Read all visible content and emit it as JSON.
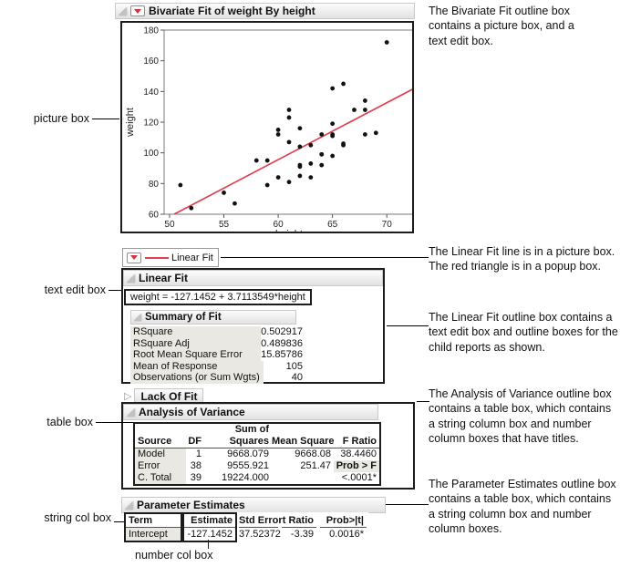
{
  "window": {
    "title_bar": "Bivariate Fit of weight By height"
  },
  "legend": {
    "label": "Linear Fit"
  },
  "linear_fit": {
    "title": "Linear Fit",
    "equation": "weight = -127.1452 + 3.7113549*height",
    "summary_of_fit": {
      "title": "Summary of Fit",
      "rows": [
        {
          "label": "RSquare",
          "value": "0.502917"
        },
        {
          "label": "RSquare Adj",
          "value": "0.489836"
        },
        {
          "label": "Root Mean Square Error",
          "value": "15.85786"
        },
        {
          "label": "Mean of Response",
          "value": "105"
        },
        {
          "label": "Observations (or Sum Wgts)",
          "value": "40"
        }
      ]
    },
    "lack_of_fit": {
      "title": "Lack Of Fit"
    },
    "analysis_of_variance": {
      "title": "Analysis of Variance",
      "columns": [
        {
          "name": "Source",
          "type": "string",
          "header": [
            "",
            "Source"
          ],
          "cells": [
            "Model",
            "Error",
            "C. Total"
          ]
        },
        {
          "name": "DF",
          "type": "number",
          "header": [
            "",
            "DF"
          ],
          "cells": [
            "1",
            "38",
            "39"
          ]
        },
        {
          "name": "Sum of Squares",
          "type": "number",
          "header": [
            "Sum of",
            "Squares"
          ],
          "cells": [
            "9668.079",
            "9555.921",
            "19224.000"
          ]
        },
        {
          "name": "Mean Square",
          "type": "number",
          "header": [
            "",
            "Mean Square"
          ],
          "cells": [
            "9668.08",
            "251.47",
            ""
          ]
        },
        {
          "name": "F Ratio",
          "type": "number",
          "header": [
            "",
            "F Ratio"
          ],
          "cells": [
            "38.4460",
            "Prob > F",
            "<.0001*"
          ],
          "label_cell_index": 1
        }
      ]
    },
    "parameter_estimates": {
      "title": "Parameter Estimates",
      "columns": [
        {
          "name": "Term",
          "type": "string",
          "header": "Term",
          "cells": [
            "Intercept"
          ],
          "boxed": true
        },
        {
          "name": "Estimate",
          "type": "number",
          "header": "Estimate",
          "cells": [
            "-127.1452"
          ],
          "boxed": true
        },
        {
          "name": "Std Error",
          "type": "number",
          "header": "Std Error",
          "cells": [
            "37.52372"
          ]
        },
        {
          "name": "t Ratio",
          "type": "number",
          "header": "t Ratio",
          "cells": [
            "-3.39"
          ]
        },
        {
          "name": "Prob>|t|",
          "type": "number",
          "header": "Prob>|t|",
          "cells": [
            "0.0016*"
          ]
        }
      ]
    }
  },
  "callout_labels": {
    "picture_box": "picture box",
    "text_edit_box": "text edit box",
    "table_box": "table box",
    "string_col_box": "string col box",
    "number_col_box": "number col box"
  },
  "annotations": [
    "The Bivariate Fit outline box\ncontains a picture box, and a\ntext edit box.",
    "The Linear Fit line is in a picture box.\nThe red triangle is in a popup box.",
    "The Linear Fit outline box contains a\ntext edit box and outline boxes for the\nchild reports as shown.",
    "The Analysis of Variance outline box\ncontains a table box, which contains\na string column box and number\ncolumn boxes that have titles.",
    "The Parameter Estimates outline box\ncontains a table box, which contains\na string column box and number\ncolumn boxes."
  ],
  "colors": {
    "red_triangle": "#d2323e",
    "fit_line": "#de4150",
    "column_shade": "#e9e8e2"
  },
  "chart_data": {
    "type": "scatter",
    "title": "",
    "xlabel": "height",
    "ylabel": "weight",
    "xlim": [
      49.5,
      72.5
    ],
    "ylim": [
      60,
      180
    ],
    "x_ticks": [
      50,
      55,
      60,
      65,
      70
    ],
    "y_ticks": [
      60,
      80,
      100,
      120,
      140,
      160,
      180
    ],
    "grid": false,
    "points": [
      [
        59,
        95
      ],
      [
        61,
        123
      ],
      [
        55,
        74
      ],
      [
        66,
        145
      ],
      [
        52,
        64
      ],
      [
        60,
        84
      ],
      [
        61,
        128
      ],
      [
        51,
        79
      ],
      [
        60,
        112
      ],
      [
        61,
        107
      ],
      [
        56,
        67
      ],
      [
        65,
        98
      ],
      [
        63,
        105
      ],
      [
        58,
        95
      ],
      [
        59,
        79
      ],
      [
        61,
        81
      ],
      [
        62,
        91
      ],
      [
        65,
        142
      ],
      [
        63,
        84
      ],
      [
        62,
        85
      ],
      [
        63,
        93
      ],
      [
        64,
        99
      ],
      [
        65,
        119
      ],
      [
        64,
        92
      ],
      [
        68,
        112
      ],
      [
        64,
        99
      ],
      [
        69,
        113
      ],
      [
        62,
        92
      ],
      [
        64,
        112
      ],
      [
        67,
        128
      ],
      [
        65,
        111
      ],
      [
        66,
        105
      ],
      [
        62,
        104
      ],
      [
        66,
        106
      ],
      [
        65,
        112
      ],
      [
        60,
        115
      ],
      [
        68,
        128
      ],
      [
        62,
        116
      ],
      [
        68,
        134
      ],
      [
        70,
        172
      ]
    ],
    "fit_line": {
      "label": "Linear Fit",
      "intercept": -127.1452,
      "slope": 3.7113549,
      "color": "#de4150"
    }
  }
}
